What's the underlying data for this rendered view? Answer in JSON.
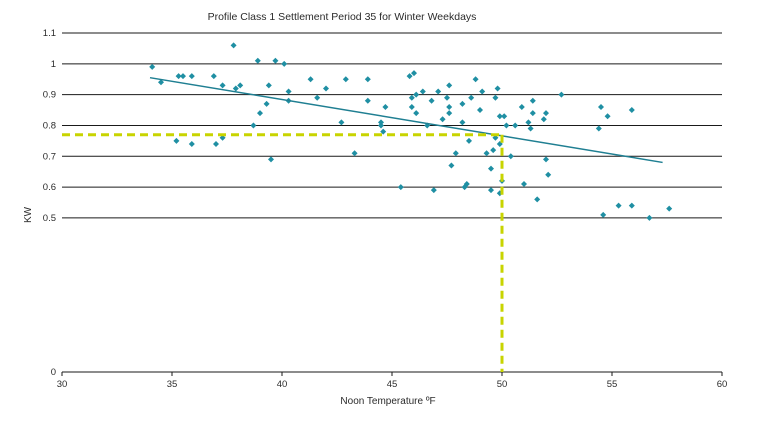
{
  "chart_data": {
    "type": "scatter",
    "title": "Profile Class 1 Settlement Period 35 for Winter Weekdays",
    "xlabel": "Noon Temperature ºF",
    "ylabel": "KW",
    "xlim": [
      30,
      60
    ],
    "ylim": [
      0,
      1.1
    ],
    "x_ticks": [
      30,
      35,
      40,
      45,
      50,
      55,
      60
    ],
    "x_tick_labels": [
      "30",
      "35",
      "40",
      "45",
      "50",
      "55",
      "60"
    ],
    "y_ticks": [
      0,
      0.5,
      0.6,
      0.7,
      0.8,
      0.9,
      1,
      1.1
    ],
    "y_tick_labels": [
      "0",
      "0.5",
      "0.6",
      "0.7",
      "0.8",
      "0.9",
      "1",
      "1.1"
    ],
    "grid": "horizontal",
    "colors": {
      "points": "#1f8fa3",
      "trendline": "#1f7f92",
      "reference": "#c8d400",
      "gridline": "#1a1a1a"
    },
    "points": [
      [
        34.1,
        0.99
      ],
      [
        34.5,
        0.94
      ],
      [
        35.2,
        0.75
      ],
      [
        35.3,
        0.96
      ],
      [
        35.5,
        0.96
      ],
      [
        35.9,
        0.96
      ],
      [
        35.9,
        0.74
      ],
      [
        36.9,
        0.96
      ],
      [
        37.0,
        0.74
      ],
      [
        37.3,
        0.76
      ],
      [
        37.3,
        0.93
      ],
      [
        37.8,
        1.06
      ],
      [
        37.9,
        0.92
      ],
      [
        38.1,
        0.93
      ],
      [
        38.7,
        0.8
      ],
      [
        38.9,
        1.01
      ],
      [
        39.0,
        0.84
      ],
      [
        39.3,
        0.87
      ],
      [
        39.4,
        0.93
      ],
      [
        39.5,
        0.69
      ],
      [
        39.7,
        1.01
      ],
      [
        40.1,
        1.0
      ],
      [
        40.3,
        0.91
      ],
      [
        40.3,
        0.88
      ],
      [
        41.3,
        0.95
      ],
      [
        41.6,
        0.89
      ],
      [
        42.0,
        0.92
      ],
      [
        42.7,
        0.81
      ],
      [
        42.9,
        0.95
      ],
      [
        43.3,
        0.71
      ],
      [
        43.9,
        0.95
      ],
      [
        43.9,
        0.88
      ],
      [
        44.5,
        0.81
      ],
      [
        44.5,
        0.8
      ],
      [
        44.6,
        0.78
      ],
      [
        44.7,
        0.86
      ],
      [
        45.4,
        0.6
      ],
      [
        45.8,
        0.96
      ],
      [
        45.9,
        0.89
      ],
      [
        45.9,
        0.86
      ],
      [
        46.0,
        0.97
      ],
      [
        46.1,
        0.84
      ],
      [
        46.1,
        0.9
      ],
      [
        46.4,
        0.91
      ],
      [
        46.6,
        0.8
      ],
      [
        46.8,
        0.88
      ],
      [
        46.9,
        0.59
      ],
      [
        47.1,
        0.91
      ],
      [
        47.3,
        0.82
      ],
      [
        47.5,
        0.89
      ],
      [
        47.6,
        0.86
      ],
      [
        47.6,
        0.84
      ],
      [
        47.6,
        0.93
      ],
      [
        47.7,
        0.67
      ],
      [
        47.9,
        0.71
      ],
      [
        48.2,
        0.81
      ],
      [
        48.2,
        0.87
      ],
      [
        48.3,
        0.6
      ],
      [
        48.4,
        0.61
      ],
      [
        48.5,
        0.75
      ],
      [
        48.6,
        0.89
      ],
      [
        48.8,
        0.95
      ],
      [
        49.0,
        0.85
      ],
      [
        49.1,
        0.91
      ],
      [
        49.3,
        0.71
      ],
      [
        49.5,
        0.66
      ],
      [
        49.5,
        0.59
      ],
      [
        49.6,
        0.72
      ],
      [
        49.7,
        0.76
      ],
      [
        49.7,
        0.89
      ],
      [
        49.8,
        0.92
      ],
      [
        49.9,
        0.83
      ],
      [
        49.9,
        0.74
      ],
      [
        49.9,
        0.58
      ],
      [
        50.0,
        0.62
      ],
      [
        50.1,
        0.83
      ],
      [
        50.2,
        0.8
      ],
      [
        50.4,
        0.7
      ],
      [
        50.6,
        0.8
      ],
      [
        50.9,
        0.86
      ],
      [
        51.0,
        0.61
      ],
      [
        51.2,
        0.81
      ],
      [
        51.3,
        0.79
      ],
      [
        51.4,
        0.88
      ],
      [
        51.4,
        0.84
      ],
      [
        51.6,
        0.56
      ],
      [
        51.9,
        0.82
      ],
      [
        52.0,
        0.84
      ],
      [
        52.0,
        0.69
      ],
      [
        52.1,
        0.64
      ],
      [
        52.7,
        0.9
      ],
      [
        54.4,
        0.79
      ],
      [
        54.5,
        0.86
      ],
      [
        54.6,
        0.51
      ],
      [
        54.8,
        0.83
      ],
      [
        55.3,
        0.54
      ],
      [
        55.9,
        0.54
      ],
      [
        55.9,
        0.85
      ],
      [
        56.7,
        0.5
      ],
      [
        57.6,
        0.53
      ]
    ],
    "trendline": {
      "x": [
        34.0,
        57.3
      ],
      "y": [
        0.955,
        0.68
      ]
    },
    "reference_lines": {
      "x": 50,
      "y": 0.77
    }
  }
}
